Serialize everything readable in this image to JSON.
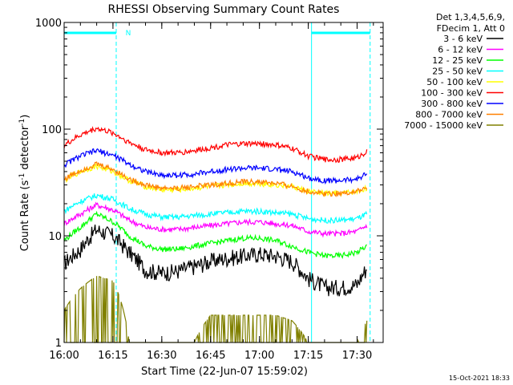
{
  "chart_data": {
    "type": "line",
    "title": "RHESSI Observing Summary Count Rates",
    "xlabel": "Start Time (22-Jun-07 15:59:02)",
    "ylabel_parts": [
      "Count Rate (s",
      "-1",
      " detector",
      "-1",
      ")"
    ],
    "y_scale": "log",
    "ylim": [
      1,
      1000
    ],
    "xlim": [
      "16:00",
      "17:38"
    ],
    "x_tick_labels": [
      "16:00",
      "16:15",
      "16:30",
      "16:45",
      "17:00",
      "17:15",
      "17:30"
    ],
    "y_tick_labels": [
      "1",
      "10",
      "100",
      "1000"
    ],
    "legend_header": [
      "Det 1,3,4,5,6,9,",
      "FDecim 1, Att 0"
    ],
    "legend_position": "right",
    "annotation_n": "N",
    "footer_timestamp": "15-Oct-2021 18:33",
    "night_intervals": [
      [
        "16:00",
        "16:16"
      ],
      [
        "17:16",
        "17:34"
      ]
    ],
    "series": [
      {
        "name": "3 - 6 keV",
        "color": "#000000",
        "x": [
          "16:00",
          "16:05",
          "16:10",
          "16:15",
          "16:20",
          "16:25",
          "16:30",
          "16:35",
          "16:40",
          "16:45",
          "16:50",
          "16:55",
          "17:00",
          "17:05",
          "17:10",
          "17:15",
          "17:20",
          "17:25",
          "17:30",
          "17:33"
        ],
        "values": [
          5.5,
          7.5,
          11.5,
          10,
          7,
          4.8,
          4.5,
          4.7,
          5.2,
          5.8,
          6.2,
          6.5,
          6.8,
          6.5,
          5.8,
          4,
          3.3,
          3.3,
          3.5,
          5
        ]
      },
      {
        "name": "6 - 12 keV",
        "color": "#ff00ff",
        "x": [
          "16:00",
          "16:05",
          "16:10",
          "16:15",
          "16:20",
          "16:25",
          "16:30",
          "16:35",
          "16:40",
          "16:45",
          "16:50",
          "16:55",
          "17:00",
          "17:05",
          "17:10",
          "17:15",
          "17:20",
          "17:25",
          "17:30",
          "17:33"
        ],
        "values": [
          13,
          16,
          19.5,
          17.5,
          14,
          12,
          11.5,
          11.5,
          12,
          12.5,
          13,
          13.5,
          13.5,
          13,
          12.5,
          11,
          10.5,
          10.5,
          11,
          12.5
        ]
      },
      {
        "name": "12 - 25 keV",
        "color": "#00ff00",
        "x": [
          "16:00",
          "16:05",
          "16:10",
          "16:15",
          "16:20",
          "16:25",
          "16:30",
          "16:35",
          "16:40",
          "16:45",
          "16:50",
          "16:55",
          "17:00",
          "17:05",
          "17:10",
          "17:15",
          "17:20",
          "17:25",
          "17:30",
          "17:33"
        ],
        "values": [
          9,
          12,
          16,
          13.5,
          10,
          8,
          7.5,
          7.5,
          8,
          8.5,
          9,
          9.5,
          9.5,
          9,
          8,
          7,
          6.5,
          6.5,
          7,
          8
        ]
      },
      {
        "name": "25 - 50 keV",
        "color": "#00ffff",
        "x": [
          "16:00",
          "16:05",
          "16:10",
          "16:15",
          "16:20",
          "16:25",
          "16:30",
          "16:35",
          "16:40",
          "16:45",
          "16:50",
          "16:55",
          "17:00",
          "17:05",
          "17:10",
          "17:15",
          "17:20",
          "17:25",
          "17:30",
          "17:33"
        ],
        "values": [
          17,
          21,
          24,
          22,
          18,
          16,
          15,
          15,
          15.5,
          16,
          16.5,
          17,
          17,
          16.5,
          16,
          14.5,
          14,
          14,
          14.5,
          16
        ]
      },
      {
        "name": "50 - 100 keV",
        "color": "#ffff00",
        "x": [
          "16:00",
          "16:05",
          "16:10",
          "16:15",
          "16:20",
          "16:25",
          "16:30",
          "16:35",
          "16:40",
          "16:45",
          "16:50",
          "16:55",
          "17:00",
          "17:05",
          "17:10",
          "17:15",
          "17:20",
          "17:25",
          "17:30",
          "17:33"
        ],
        "values": [
          33,
          40,
          45,
          40,
          33,
          29,
          27,
          27,
          28,
          29,
          30,
          31,
          31,
          30,
          29,
          26,
          25,
          25,
          26,
          28
        ]
      },
      {
        "name": "100 - 300 keV",
        "color": "#ff0000",
        "x": [
          "16:00",
          "16:05",
          "16:10",
          "16:15",
          "16:20",
          "16:25",
          "16:30",
          "16:35",
          "16:40",
          "16:45",
          "16:50",
          "16:55",
          "17:00",
          "17:05",
          "17:10",
          "17:15",
          "17:20",
          "17:25",
          "17:30",
          "17:33"
        ],
        "values": [
          70,
          88,
          102,
          92,
          75,
          64,
          60,
          60,
          63,
          67,
          71,
          73,
          73,
          71,
          66,
          56,
          52,
          52,
          54,
          62
        ]
      },
      {
        "name": "300 - 800 keV",
        "color": "#0000ff",
        "x": [
          "16:00",
          "16:05",
          "16:10",
          "16:15",
          "16:20",
          "16:25",
          "16:30",
          "16:35",
          "16:40",
          "16:45",
          "16:50",
          "16:55",
          "17:00",
          "17:05",
          "17:10",
          "17:15",
          "17:20",
          "17:25",
          "17:30",
          "17:33"
        ],
        "values": [
          46,
          56,
          63,
          57,
          47,
          40,
          37,
          37,
          38,
          40,
          42,
          43,
          43,
          42,
          40,
          35,
          33,
          33,
          34,
          38
        ]
      },
      {
        "name": "800 - 7000 keV",
        "color": "#ff8000",
        "x": [
          "16:00",
          "16:05",
          "16:10",
          "16:15",
          "16:20",
          "16:25",
          "16:30",
          "16:35",
          "16:40",
          "16:45",
          "16:50",
          "16:55",
          "17:00",
          "17:05",
          "17:10",
          "17:15",
          "17:20",
          "17:25",
          "17:30",
          "17:33"
        ],
        "values": [
          34,
          41,
          47,
          42,
          34,
          30,
          28,
          28,
          29,
          30,
          31,
          32,
          32,
          31,
          29,
          26,
          25,
          25,
          26,
          28
        ]
      },
      {
        "name": "7000 - 15000 keV",
        "color": "#808000",
        "x": [
          "16:00",
          "16:05",
          "16:10",
          "16:15",
          "16:20",
          "16:25",
          "16:30",
          "16:35",
          "16:40",
          "16:45",
          "16:50",
          "16:55",
          "17:00",
          "17:05",
          "17:10",
          "17:15",
          "17:20",
          "17:25",
          "17:30",
          "17:33"
        ],
        "values": [
          2,
          3.2,
          4.2,
          3.8,
          1,
          1,
          1,
          1,
          1,
          1.8,
          1.8,
          1.8,
          1.8,
          1.8,
          1.6,
          1,
          1,
          1,
          1,
          1.6
        ]
      }
    ]
  }
}
